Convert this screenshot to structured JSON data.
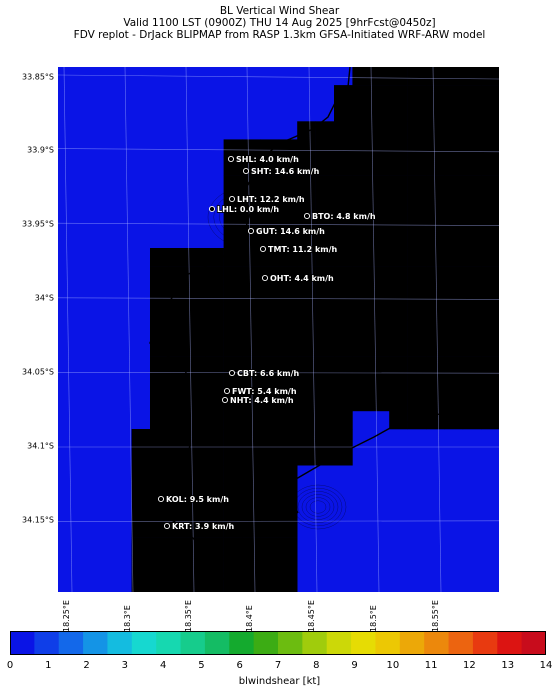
{
  "title": {
    "line1": "BL Vertical Wind Shear",
    "line2": "Valid 1100 LST (0900Z) THU 14 Aug 2025 [9hrFcst@0450z]",
    "line3": "FDV replot - DrJack BLIPMAP from RASP 1.3km GFSA-Initiated WRF-ARW model"
  },
  "map": {
    "lat_labels": [
      "33.85°S",
      "33.9°S",
      "33.95°S",
      "34°S",
      "34.05°S",
      "34.1°S",
      "34.15°S"
    ],
    "lon_labels": [
      "18.25°E",
      "18.3°E",
      "18.35°E",
      "18.4°E",
      "18.45°E",
      "18.5°E",
      "18.55°E"
    ],
    "stations": [
      {
        "label": "SHL: 4.0 km/h",
        "value": 4.0
      },
      {
        "label": "SHT: 14.6 km/h",
        "value": 14.6
      },
      {
        "label": "LHT: 12.2 km/h",
        "value": 12.2
      },
      {
        "label": "LHL: 0.0 km/h",
        "value": 0.0
      },
      {
        "label": "BTO: 4.8 km/h",
        "value": 4.8
      },
      {
        "label": "GUT: 14.6 km/h",
        "value": 14.6
      },
      {
        "label": "TMT: 11.2 km/h",
        "value": 11.2
      },
      {
        "label": "OHT: 4.4 km/h",
        "value": 4.4
      },
      {
        "label": "CBT: 6.6 km/h",
        "value": 6.6
      },
      {
        "label": "FWT: 5.4 km/h",
        "value": 5.4
      },
      {
        "label": "NHT: 4.4 km/h",
        "value": 4.4
      },
      {
        "label": "KOL: 9.5 km/h",
        "value": 9.5
      },
      {
        "label": "KRT: 3.9 km/h",
        "value": 3.9
      }
    ]
  },
  "colorbar": {
    "label": "blwindshear [kt]",
    "ticks": [
      "0",
      "1",
      "2",
      "3",
      "4",
      "5",
      "6",
      "7",
      "8",
      "9",
      "10",
      "11",
      "12",
      "13",
      "14"
    ],
    "colors": [
      "#0a14e6",
      "#0f3ee8",
      "#1368ea",
      "#1494e6",
      "#14bce0",
      "#16d8d0",
      "#16d8b0",
      "#16cc8c",
      "#14bc64",
      "#14aa2e",
      "#3cac14",
      "#6cbc10",
      "#a0cc0c",
      "#ccd808",
      "#e6dc04",
      "#ecc804",
      "#eca808",
      "#ec880c",
      "#ec6410",
      "#e83a10",
      "#dc1412",
      "#c80c1c"
    ]
  }
}
